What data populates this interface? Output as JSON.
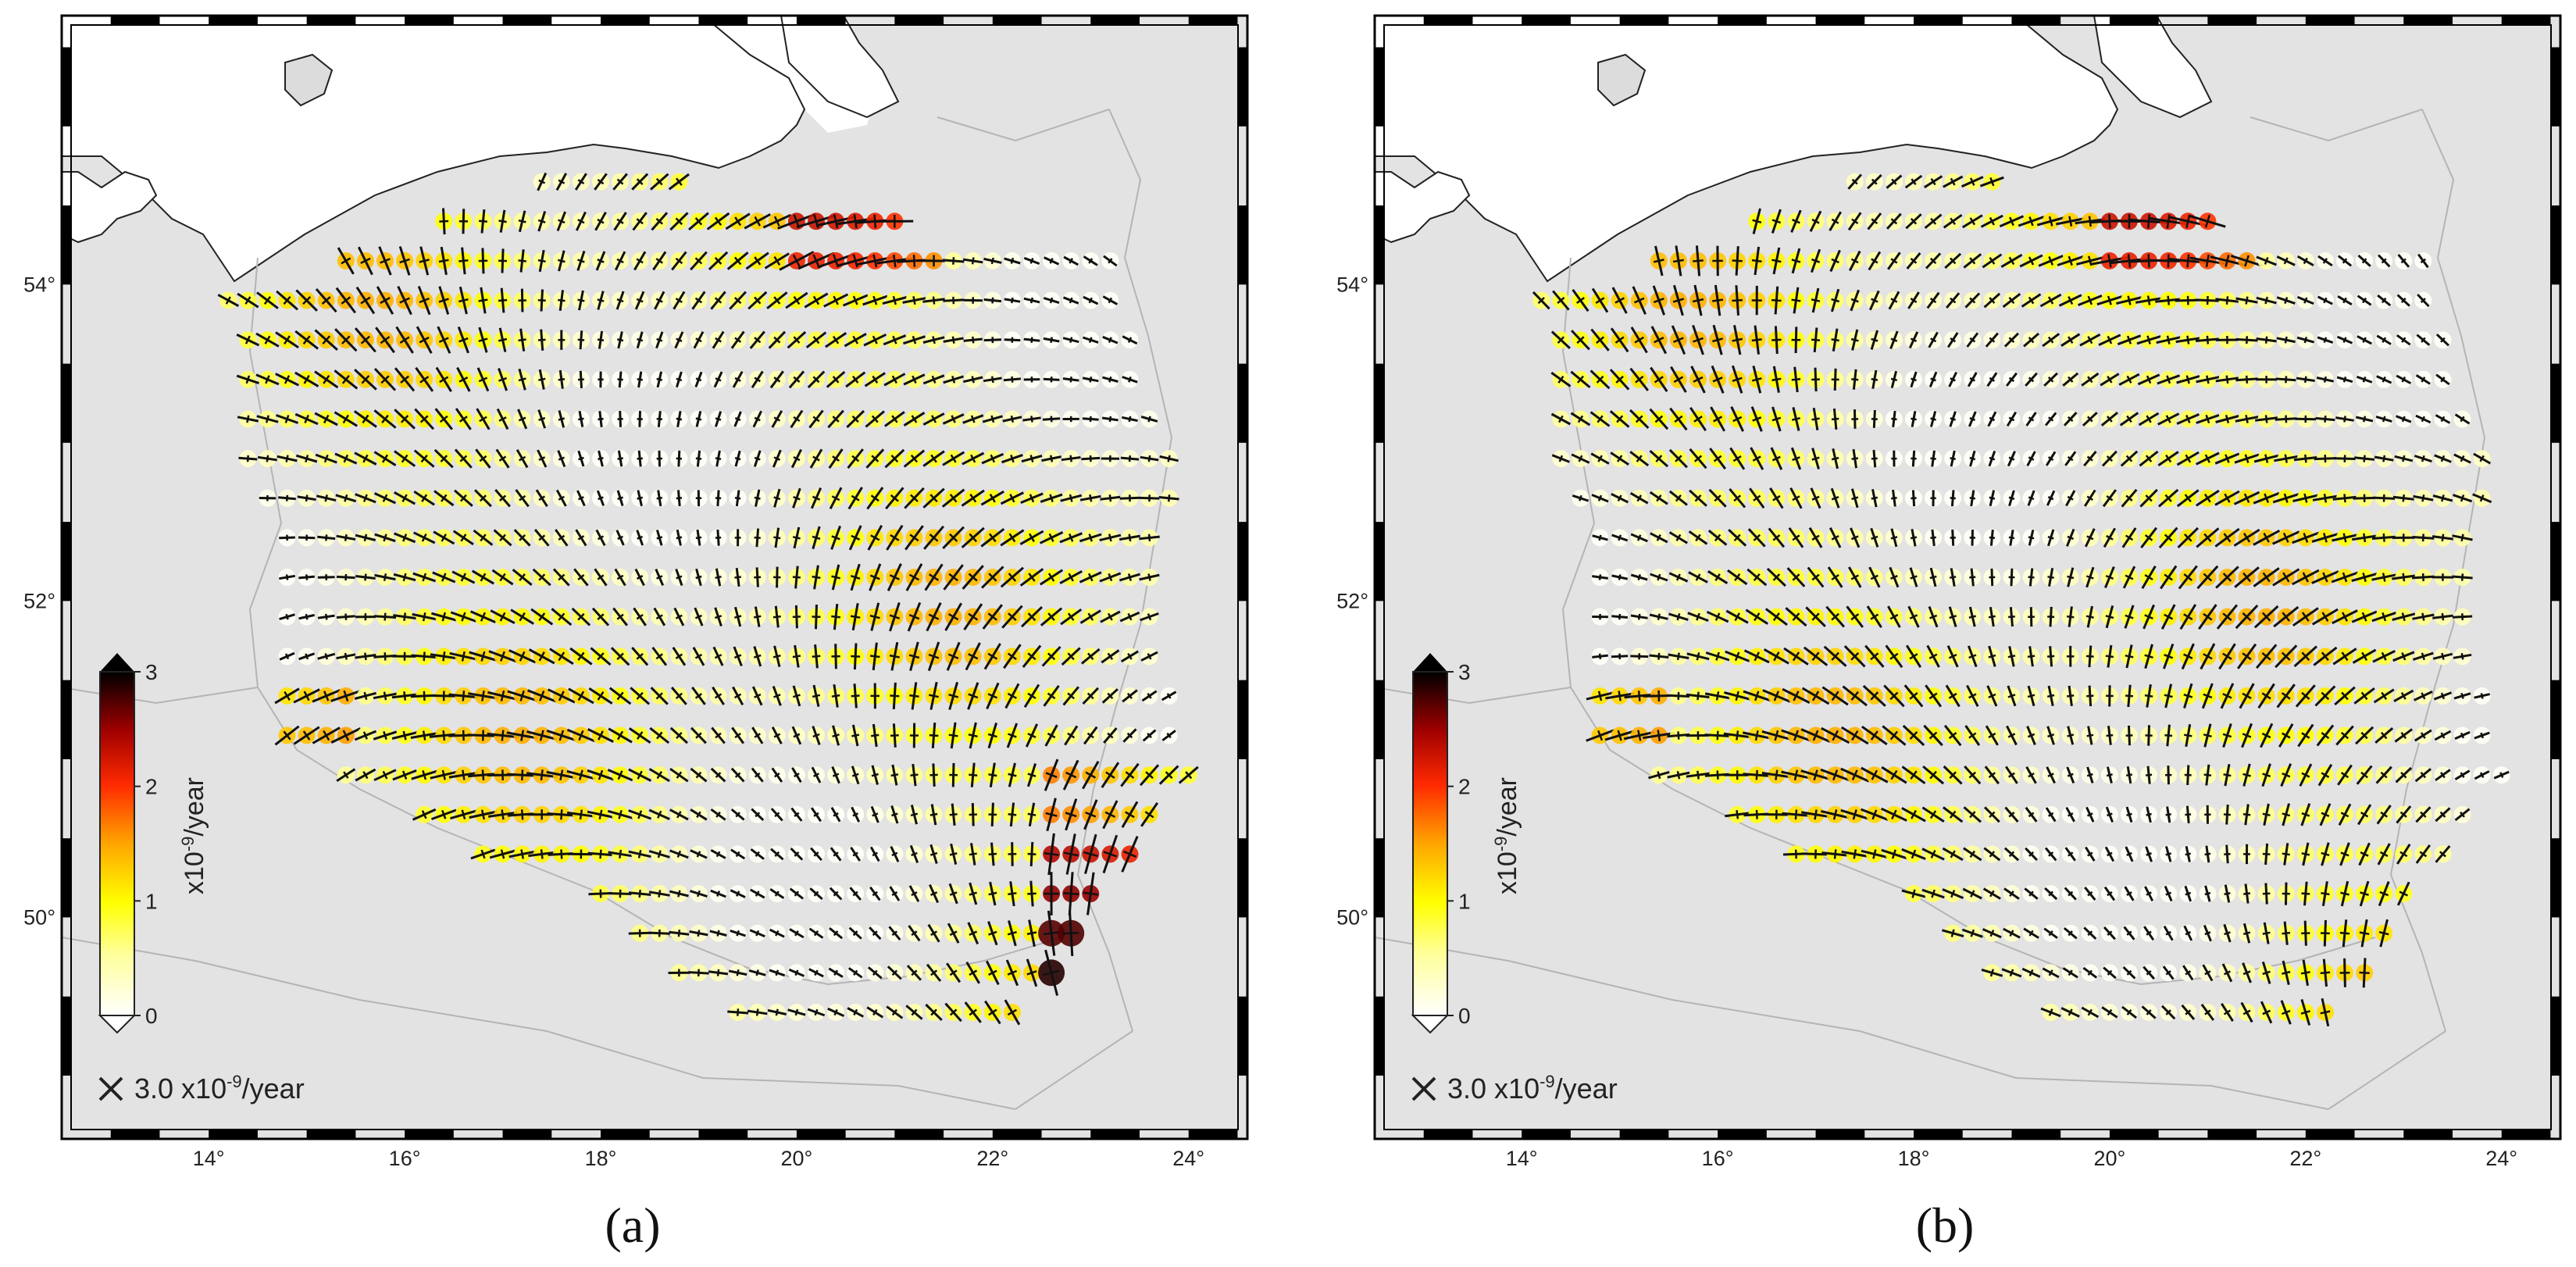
{
  "panels": [
    {
      "id": "a",
      "label": "(a)",
      "colorbar": {
        "title": "x10-9/year",
        "title_base": "x10",
        "title_exp": "-9",
        "title_unit": "/year",
        "ticks": [
          "0",
          "1",
          "2",
          "3"
        ],
        "min": 0,
        "max": 3
      },
      "scale": {
        "prefix": "3.0 x10",
        "exp": "-9",
        "unit": "/year",
        "value": 3.0
      },
      "x_ticks": [
        "14°",
        "16°",
        "18°",
        "20°",
        "22°",
        "24°"
      ],
      "y_ticks": [
        "50°",
        "52°",
        "54°"
      ]
    },
    {
      "id": "b",
      "label": "(b)",
      "colorbar": {
        "title": "x10-9/year",
        "title_base": "x10",
        "title_exp": "-9",
        "title_unit": "/year",
        "ticks": [
          "0",
          "1",
          "2",
          "3"
        ],
        "min": 0,
        "max": 3
      },
      "scale": {
        "prefix": "3.0 x10",
        "exp": "-9",
        "unit": "/year",
        "value": 3.0
      },
      "x_ticks": [
        "14°",
        "16°",
        "18°",
        "20°",
        "22°",
        "24°"
      ],
      "y_ticks": [
        "50°",
        "52°",
        "54°"
      ]
    }
  ],
  "map_extent": {
    "lon_min": 12.5,
    "lon_max": 24.6,
    "lat_min": 48.6,
    "lat_max": 55.7
  },
  "colors": {
    "land": "#e3e3e3",
    "sea": "#ffffff",
    "border": "#b4b4b4",
    "coast": "#222222",
    "frame": "#000000"
  }
}
